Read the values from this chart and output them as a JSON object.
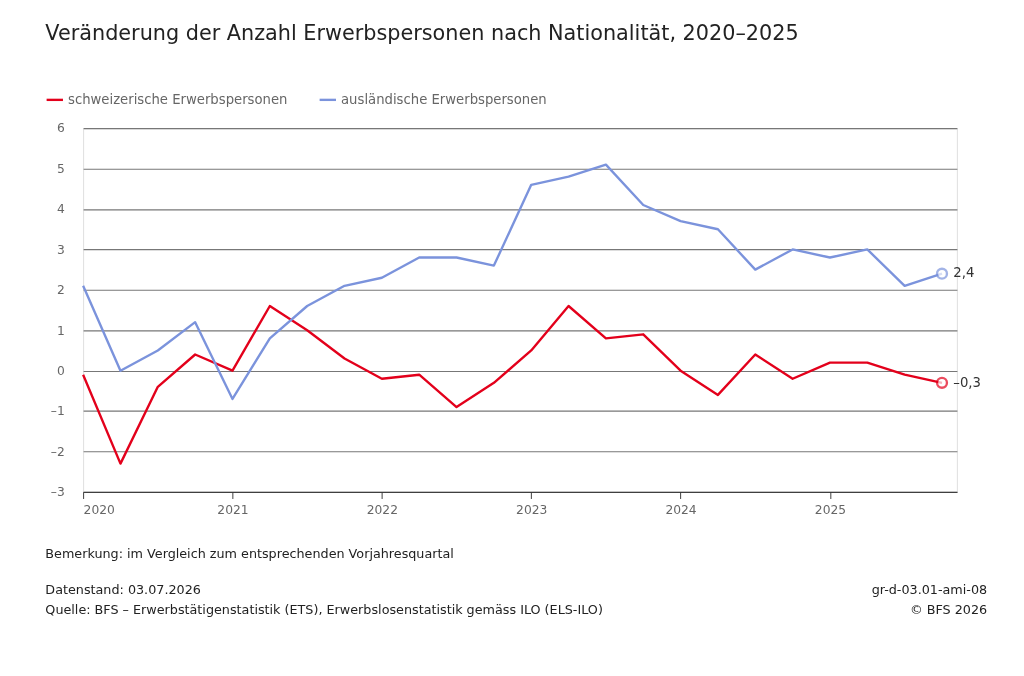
{
  "chart_data": {
    "type": "line",
    "title": "Veränderung der Anzahl Erwerbspersonen nach Nationalität, 2020–2025",
    "x": [
      2020,
      2020.25,
      2020.5,
      2020.75,
      2021,
      2021.25,
      2021.5,
      2021.75,
      2022,
      2022.25,
      2022.5,
      2022.75,
      2023,
      2023.25,
      2023.5,
      2023.75,
      2024,
      2024.25,
      2024.5,
      2024.75,
      2025,
      2025.25,
      2025.5,
      2025.75
    ],
    "series": [
      {
        "name": "schweizerische Erwerbspersonen",
        "color": "#e3001b",
        "values": [
          -0.1,
          -2.3,
          -0.4,
          0.4,
          0.0,
          1.6,
          1.0,
          0.3,
          -0.2,
          -0.1,
          -0.9,
          -0.3,
          0.5,
          1.6,
          0.8,
          0.9,
          0.0,
          -0.6,
          0.4,
          -0.2,
          0.2,
          0.2,
          -0.1,
          -0.3
        ],
        "value_labels": [
          null,
          null,
          null,
          null,
          null,
          null,
          null,
          null,
          null,
          null,
          null,
          null,
          null,
          null,
          null,
          null,
          null,
          null,
          null,
          null,
          null,
          null,
          null,
          "–0,3"
        ]
      },
      {
        "name": "ausländische Erwerbspersonen",
        "color": "#7b93dc",
        "values": [
          2.1,
          0.0,
          0.5,
          1.2,
          -0.7,
          0.8,
          1.6,
          2.1,
          2.3,
          2.8,
          2.8,
          2.6,
          4.6,
          4.8,
          5.1,
          4.1,
          3.7,
          3.5,
          2.5,
          3.0,
          2.8,
          3.0,
          2.1,
          2.4
        ],
        "value_labels": [
          null,
          null,
          null,
          null,
          null,
          null,
          null,
          null,
          null,
          null,
          null,
          null,
          null,
          null,
          null,
          null,
          null,
          null,
          null,
          null,
          null,
          null,
          null,
          "2,4"
        ]
      }
    ],
    "xlim": [
      2020,
      2025.85
    ],
    "xticks": [
      2020,
      2021,
      2022,
      2023,
      2024,
      2025
    ],
    "ylim": [
      -3,
      6
    ],
    "yticks": [
      {
        "value": -3,
        "label": "–3"
      },
      {
        "value": -2,
        "label": "–2"
      },
      {
        "value": -1,
        "label": "–1"
      },
      0,
      1,
      2,
      3,
      4,
      5,
      6
    ],
    "grid": "y",
    "legend": "top left",
    "marker": "none",
    "line_style": "solid",
    "annotations": [
      "Bemerkung: im Vergleich zum entsprechenden Vorjahresquartal",
      "Datenstand: 03.07.2026",
      "gr-d-03.01-ami-08",
      "Quelle: BFS – Erwerbstätigenstatistik (ETS), Erwerbslosenstatistik gemäss ILO (ELS-ILO)",
      "© BFS 2026"
    ]
  }
}
